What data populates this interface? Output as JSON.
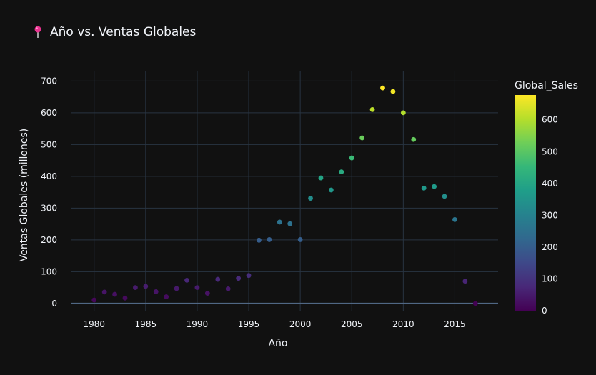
{
  "chart_data": {
    "type": "scatter",
    "title": "Año vs. Ventas Globales",
    "title_icon": "pushpin-icon",
    "xlabel": "Año",
    "ylabel": "Ventas Globales (millones)",
    "xlim": [
      1977.8,
      2019.2
    ],
    "ylim": [
      -25,
      730
    ],
    "x_ticks": [
      1980,
      1985,
      1990,
      1995,
      2000,
      2005,
      2010,
      2015
    ],
    "y_ticks": [
      0,
      100,
      200,
      300,
      400,
      500,
      600,
      700
    ],
    "grid": true,
    "colorscale": "viridis",
    "colorbar": {
      "title": "Global_Sales",
      "range": [
        0,
        678
      ],
      "ticks": [
        0,
        100,
        200,
        300,
        400,
        500,
        600
      ]
    },
    "points": [
      {
        "x": 1980,
        "y": 11
      },
      {
        "x": 1981,
        "y": 36
      },
      {
        "x": 1982,
        "y": 29
      },
      {
        "x": 1983,
        "y": 17
      },
      {
        "x": 1984,
        "y": 50
      },
      {
        "x": 1985,
        "y": 54
      },
      {
        "x": 1986,
        "y": 37
      },
      {
        "x": 1987,
        "y": 21
      },
      {
        "x": 1988,
        "y": 47
      },
      {
        "x": 1989,
        "y": 73
      },
      {
        "x": 1990,
        "y": 50
      },
      {
        "x": 1991,
        "y": 32
      },
      {
        "x": 1992,
        "y": 76
      },
      {
        "x": 1993,
        "y": 46
      },
      {
        "x": 1994,
        "y": 79
      },
      {
        "x": 1995,
        "y": 88
      },
      {
        "x": 1996,
        "y": 199
      },
      {
        "x": 1997,
        "y": 201
      },
      {
        "x": 1998,
        "y": 256
      },
      {
        "x": 1999,
        "y": 251
      },
      {
        "x": 2000,
        "y": 201
      },
      {
        "x": 2001,
        "y": 331
      },
      {
        "x": 2002,
        "y": 395
      },
      {
        "x": 2003,
        "y": 357
      },
      {
        "x": 2004,
        "y": 414
      },
      {
        "x": 2005,
        "y": 458
      },
      {
        "x": 2006,
        "y": 521
      },
      {
        "x": 2007,
        "y": 610
      },
      {
        "x": 2008,
        "y": 678
      },
      {
        "x": 2009,
        "y": 667
      },
      {
        "x": 2010,
        "y": 600
      },
      {
        "x": 2011,
        "y": 516
      },
      {
        "x": 2012,
        "y": 363
      },
      {
        "x": 2013,
        "y": 368
      },
      {
        "x": 2014,
        "y": 337
      },
      {
        "x": 2015,
        "y": 264
      },
      {
        "x": 2016,
        "y": 70
      },
      {
        "x": 2017,
        "y": 0
      }
    ]
  }
}
